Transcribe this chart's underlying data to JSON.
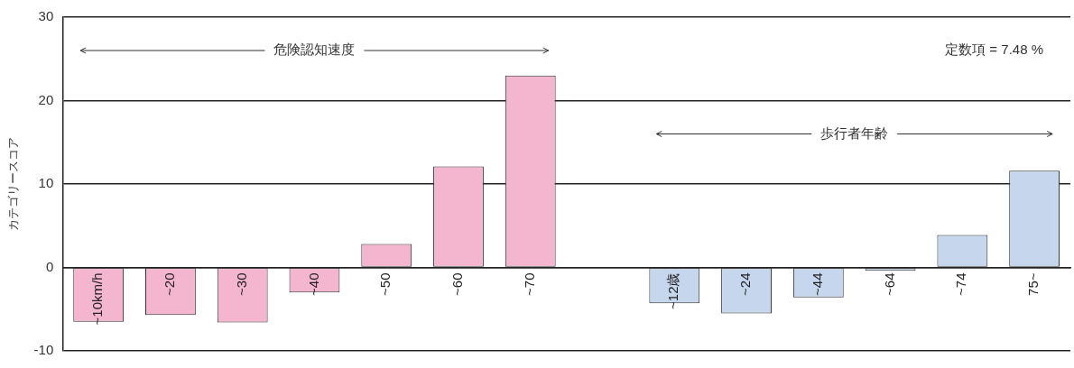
{
  "chart_data": {
    "type": "bar",
    "ylabel": "カテゴリースコア",
    "categories": [
      "~10km/h",
      "~20",
      "~30",
      "~40",
      "~50",
      "~60",
      "~70",
      null,
      "~12歳",
      "~24",
      "~44",
      "~64",
      "~74",
      "75~"
    ],
    "values": [
      -6.5,
      -5.7,
      -6.6,
      -3.0,
      2.8,
      12.1,
      23.0,
      null,
      -4.3,
      -5.5,
      -3.6,
      -0.4,
      3.9,
      11.6
    ],
    "colors": [
      "#f4b5ce",
      "#f4b5ce",
      "#f4b5ce",
      "#f4b5ce",
      "#f4b5ce",
      "#f4b5ce",
      "#f4b5ce",
      "#f4b5ce",
      "#c6d6ec",
      "#c6d6ec",
      "#c6d6ec",
      "#c6d6ec",
      "#c6d6ec",
      "#c6d6ec"
    ],
    "ylim": [
      -10,
      30
    ],
    "yticks": [
      -10,
      0,
      10,
      20,
      30
    ],
    "grid": "y",
    "legend": false,
    "annotations": [
      "危険認知速度",
      "歩行者年齢",
      "定数項 = 7.48 %"
    ]
  }
}
